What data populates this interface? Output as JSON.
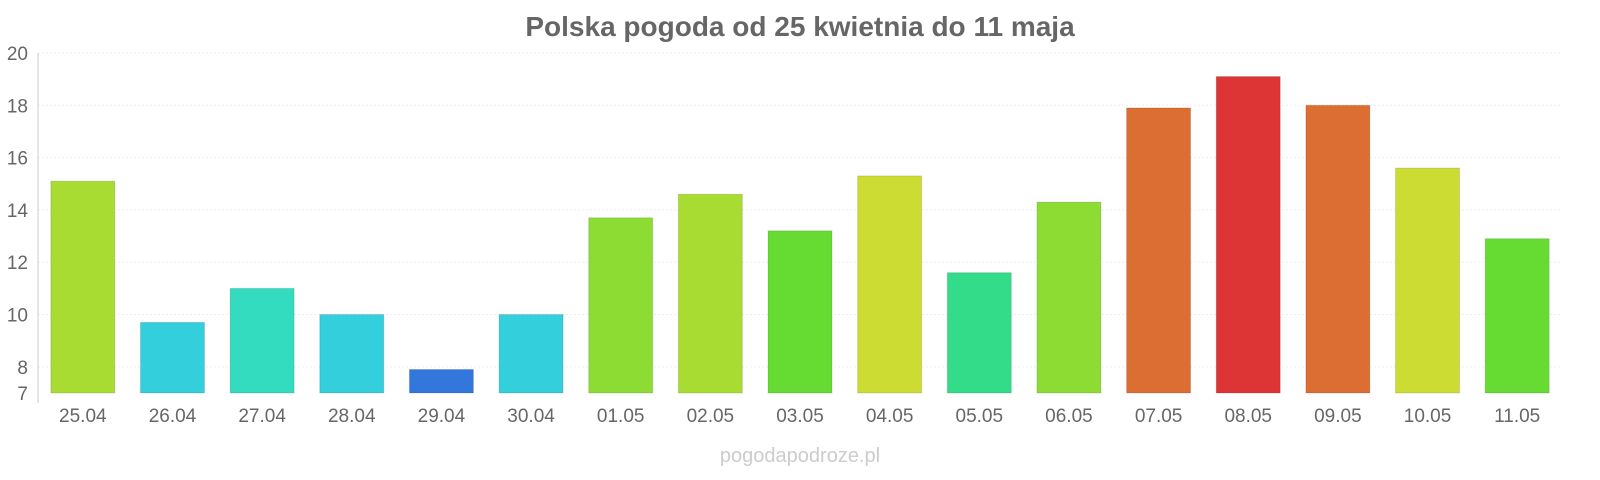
{
  "chart_data": {
    "type": "bar",
    "title": "Polska pogoda od 25 kwietnia do 11 maja",
    "xlabel": "",
    "ylabel": "",
    "ylim": [
      7,
      20
    ],
    "yticks": [
      7,
      8,
      10,
      12,
      14,
      16,
      18,
      20
    ],
    "grid": true,
    "legend": "none",
    "categories": [
      "25.04",
      "26.04",
      "27.04",
      "28.04",
      "29.04",
      "30.04",
      "01.05",
      "02.05",
      "03.05",
      "04.05",
      "05.05",
      "06.05",
      "07.05",
      "08.05",
      "09.05",
      "10.05",
      "11.05"
    ],
    "values": [
      15.1,
      9.7,
      11.0,
      10.0,
      7.9,
      10.0,
      13.7,
      14.6,
      13.2,
      15.3,
      11.6,
      14.3,
      17.9,
      19.1,
      18.0,
      15.6,
      12.9
    ],
    "colors": [
      "#a9dc33",
      "#33cfdd",
      "#33dcbe",
      "#33cfdd",
      "#3377dd",
      "#33cfdd",
      "#8ddc33",
      "#a9dc33",
      "#66dc33",
      "#ccdc33",
      "#33dc88",
      "#8ddc33",
      "#dd6e33",
      "#dd3535",
      "#dd6e33",
      "#ccdc33",
      "#66dc33"
    ]
  },
  "credit": "pogodapodroze.pl"
}
